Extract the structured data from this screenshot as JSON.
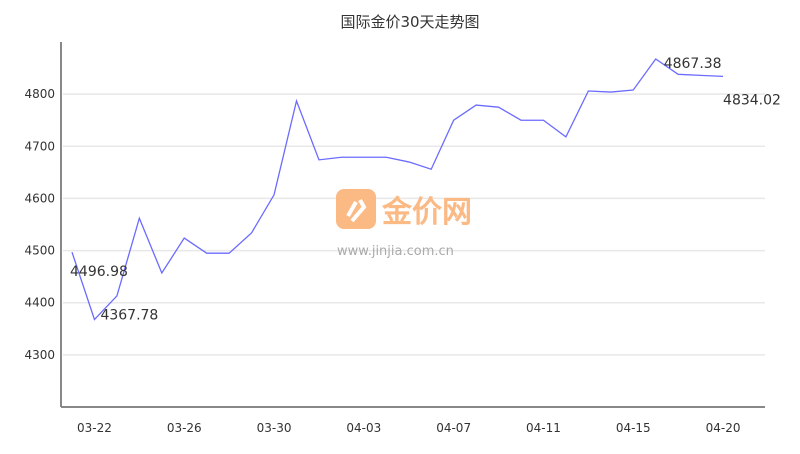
{
  "chart_data": {
    "type": "line",
    "title": "国际金价30天走势图",
    "xlabel": "",
    "ylabel": "",
    "x_tick_labels": [
      {
        "label": "03-22",
        "index": 1
      },
      {
        "label": "03-26",
        "index": 5
      },
      {
        "label": "03-30",
        "index": 9
      },
      {
        "label": "04-03",
        "index": 13
      },
      {
        "label": "04-07",
        "index": 17
      },
      {
        "label": "04-11",
        "index": 21
      },
      {
        "label": "04-15",
        "index": 25
      },
      {
        "label": "04-20",
        "index": 29
      }
    ],
    "ylim": [
      4200,
      4900
    ],
    "y_ticks": [
      4300,
      4400,
      4500,
      4600,
      4700,
      4800
    ],
    "grid": "horizontal",
    "line_color": "#6b6bff",
    "values": [
      4496.98,
      4367.78,
      4413,
      4562,
      4457,
      4524,
      4495,
      4495,
      4534,
      4607,
      4787,
      4674,
      4679,
      4679,
      4679,
      4670,
      4656,
      4750,
      4779,
      4775,
      4750,
      4750,
      4718,
      4806,
      4804,
      4808,
      4867.38,
      4838,
      4836,
      4834.02
    ],
    "annotations": [
      {
        "index": 0,
        "text": "4496.98"
      },
      {
        "index": 1,
        "text": "4367.78"
      },
      {
        "index": 26,
        "text": "4867.38"
      },
      {
        "index": 29,
        "text": "4834.02"
      }
    ]
  },
  "watermark": {
    "brand": "金价网",
    "url": "www.jinjia.com.cn",
    "color": "#fbb984"
  }
}
